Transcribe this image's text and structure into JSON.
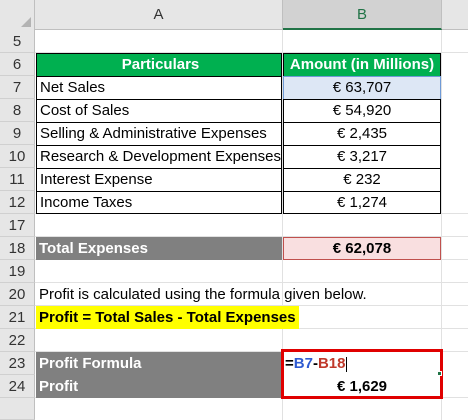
{
  "columns": [
    "A",
    "B"
  ],
  "selected_column": "B",
  "row_numbers": [
    "5",
    "6",
    "7",
    "8",
    "9",
    "10",
    "11",
    "12",
    "17",
    "18",
    "19",
    "20",
    "21",
    "22",
    "23",
    "24"
  ],
  "table": {
    "header": {
      "particulars": "Particulars",
      "amount": "Amount (in Millions)"
    },
    "rows": [
      {
        "label": "Net Sales",
        "value": "€ 63,707"
      },
      {
        "label": "Cost of Sales",
        "value": "€ 54,920"
      },
      {
        "label": "Selling & Administrative Expenses",
        "value": "€ 2,435"
      },
      {
        "label": "Research & Development Expenses",
        "value": "€ 3,217"
      },
      {
        "label": "Interest Expense",
        "value": "€ 232"
      },
      {
        "label": "Income Taxes",
        "value": "€ 1,274"
      }
    ]
  },
  "total_expenses": {
    "label": "Total Expenses",
    "value": "€ 62,078"
  },
  "note": "Profit is calculated using the formula given below.",
  "formula_text": "Profit = Total Sales - Total Expenses",
  "profit_formula": {
    "label": "Profit Formula",
    "eq": "=",
    "ref1": "B7",
    "op": "-",
    "ref2": "B18"
  },
  "profit": {
    "label": "Profit",
    "value": "€ 1,629"
  },
  "colors": {
    "header_green": "#00b050",
    "grey_band": "#808080",
    "highlight_yellow": "#ffff00",
    "formula_border_red": "#e00000",
    "ref_blue": "#2f5bd1",
    "ref_red": "#c0392b"
  }
}
